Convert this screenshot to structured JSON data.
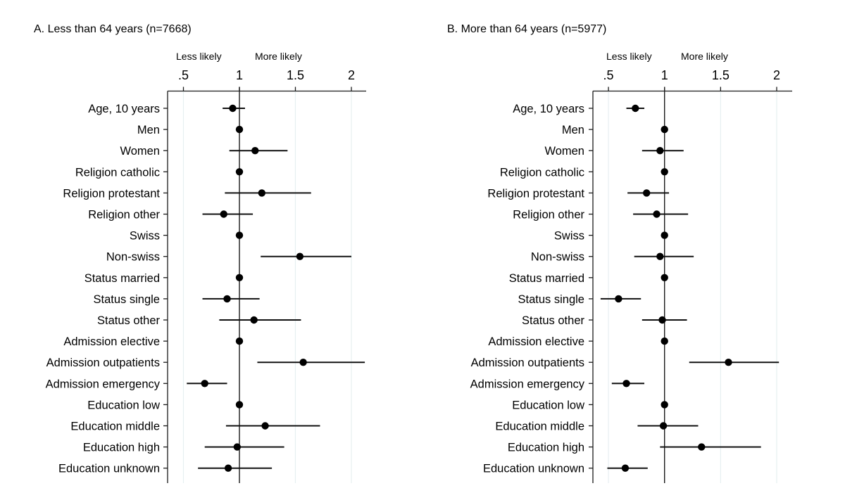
{
  "chart_data": [
    {
      "type": "scatter",
      "subtype": "forest-plot",
      "title": "A. Less than 64 years (n=7668)",
      "hint_left": "Less likely",
      "hint_right": "More likely",
      "xlim": [
        0.4,
        2.13
      ],
      "xticks": [
        0.5,
        1,
        1.5,
        2
      ],
      "xtick_labels": [
        ".5",
        "1",
        "1.5",
        "2"
      ],
      "reference_line": 1,
      "grid": true,
      "rows": [
        {
          "label": "Age, 10 years",
          "estimate": 0.94,
          "lower": 0.85,
          "upper": 1.05
        },
        {
          "label": "Men",
          "estimate": 1.0,
          "lower": null,
          "upper": null
        },
        {
          "label": "Women",
          "estimate": 1.14,
          "lower": 0.91,
          "upper": 1.43
        },
        {
          "label": "Religion catholic",
          "estimate": 1.0,
          "lower": null,
          "upper": null
        },
        {
          "label": "Religion protestant",
          "estimate": 1.2,
          "lower": 0.87,
          "upper": 1.64
        },
        {
          "label": "Religion other",
          "estimate": 0.86,
          "lower": 0.67,
          "upper": 1.12
        },
        {
          "label": "Swiss",
          "estimate": 1.0,
          "lower": null,
          "upper": null
        },
        {
          "label": "Non-swiss",
          "estimate": 1.54,
          "lower": 1.19,
          "upper": 2.0
        },
        {
          "label": "Status married",
          "estimate": 1.0,
          "lower": null,
          "upper": null
        },
        {
          "label": "Status single",
          "estimate": 0.89,
          "lower": 0.67,
          "upper": 1.18
        },
        {
          "label": "Status other",
          "estimate": 1.13,
          "lower": 0.82,
          "upper": 1.55
        },
        {
          "label": "Admission elective",
          "estimate": 1.0,
          "lower": null,
          "upper": null
        },
        {
          "label": "Admission outpatients",
          "estimate": 1.57,
          "lower": 1.16,
          "upper": 2.12
        },
        {
          "label": "Admission emergency",
          "estimate": 0.69,
          "lower": 0.53,
          "upper": 0.89
        },
        {
          "label": "Education low",
          "estimate": 1.0,
          "lower": null,
          "upper": null
        },
        {
          "label": "Education middle",
          "estimate": 1.23,
          "lower": 0.88,
          "upper": 1.72
        },
        {
          "label": "Education high",
          "estimate": 0.98,
          "lower": 0.69,
          "upper": 1.4
        },
        {
          "label": "Education unknown",
          "estimate": 0.9,
          "lower": 0.63,
          "upper": 1.29
        }
      ]
    },
    {
      "type": "scatter",
      "subtype": "forest-plot",
      "title": "B. More than 64 years (n=5977)",
      "hint_left": "Less likely",
      "hint_right": "More likely",
      "xlim": [
        0.38,
        2.14
      ],
      "xticks": [
        0.5,
        1,
        1.5,
        2
      ],
      "xtick_labels": [
        ".5",
        "1",
        "1.5",
        "2"
      ],
      "reference_line": 1,
      "grid": true,
      "rows": [
        {
          "label": "Age, 10 years",
          "estimate": 0.74,
          "lower": 0.66,
          "upper": 0.82
        },
        {
          "label": "Men",
          "estimate": 1.0,
          "lower": null,
          "upper": null
        },
        {
          "label": "Women",
          "estimate": 0.96,
          "lower": 0.8,
          "upper": 1.17
        },
        {
          "label": "Religion catholic",
          "estimate": 1.0,
          "lower": null,
          "upper": null
        },
        {
          "label": "Religion protestant",
          "estimate": 0.84,
          "lower": 0.67,
          "upper": 1.04
        },
        {
          "label": "Religion other",
          "estimate": 0.93,
          "lower": 0.72,
          "upper": 1.21
        },
        {
          "label": "Swiss",
          "estimate": 1.0,
          "lower": null,
          "upper": null
        },
        {
          "label": "Non-swiss",
          "estimate": 0.96,
          "lower": 0.73,
          "upper": 1.26
        },
        {
          "label": "Status married",
          "estimate": 1.0,
          "lower": null,
          "upper": null
        },
        {
          "label": "Status single",
          "estimate": 0.59,
          "lower": 0.43,
          "upper": 0.79
        },
        {
          "label": "Status other",
          "estimate": 0.98,
          "lower": 0.8,
          "upper": 1.2
        },
        {
          "label": "Admission elective",
          "estimate": 1.0,
          "lower": null,
          "upper": null
        },
        {
          "label": "Admission outpatients",
          "estimate": 1.57,
          "lower": 1.22,
          "upper": 2.02
        },
        {
          "label": "Admission emergency",
          "estimate": 0.66,
          "lower": 0.53,
          "upper": 0.82
        },
        {
          "label": "Education low",
          "estimate": 1.0,
          "lower": null,
          "upper": null
        },
        {
          "label": "Education middle",
          "estimate": 0.99,
          "lower": 0.76,
          "upper": 1.3
        },
        {
          "label": "Education high",
          "estimate": 1.33,
          "lower": 0.96,
          "upper": 1.86
        },
        {
          "label": "Education unknown",
          "estimate": 0.65,
          "lower": 0.49,
          "upper": 0.85
        }
      ]
    }
  ]
}
